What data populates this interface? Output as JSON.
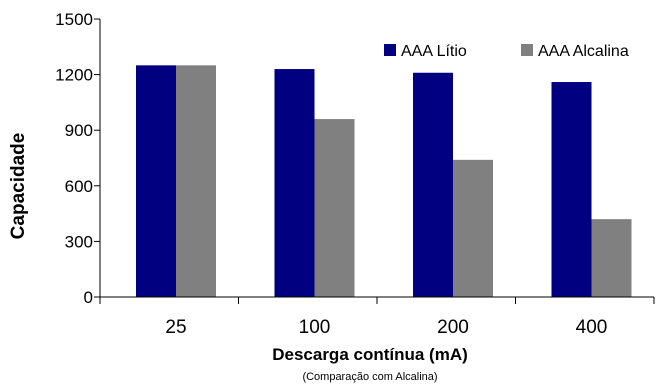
{
  "chart_data": {
    "type": "bar",
    "categories": [
      "25",
      "100",
      "200",
      "400"
    ],
    "series": [
      {
        "name": "AAA Lítio",
        "color": "#000080",
        "values": [
          1250,
          1230,
          1210,
          1160
        ]
      },
      {
        "name": "AAA Alcalina",
        "color": "#808080",
        "values": [
          1250,
          960,
          740,
          420
        ]
      }
    ],
    "ylabel": "Capacidade",
    "xlabel": "Descarga contínua (mA)",
    "note": "(Comparação com Alcalina)",
    "ylim": [
      0,
      1500
    ],
    "yticks": [
      0,
      300,
      600,
      900,
      1200,
      1500
    ],
    "grid": false,
    "legend_position": "top-right"
  }
}
